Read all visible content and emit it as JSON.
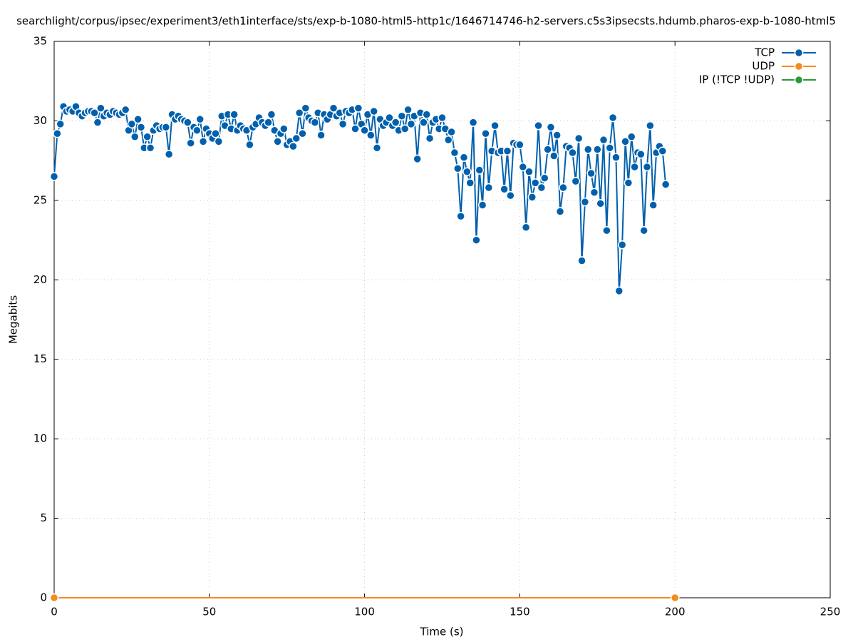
{
  "chart_data": {
    "type": "line",
    "title": "searchlight/corpus/ipsec/experiment3/eth1interface/sts/exp-b-1080-html5-http1c/1646714746-h2-servers.c5s3ipsecsts.hdumb.pharos-exp-b-1080-html5",
    "x_label": "Time (s)",
    "y_label": "Megabits",
    "xlim": [
      0,
      250
    ],
    "xticks": [
      0,
      50,
      100,
      150,
      200,
      250
    ],
    "ylim": [
      0,
      35
    ],
    "yticks": [
      0,
      5,
      10,
      15,
      20,
      25,
      30,
      35
    ],
    "grid": true,
    "legend": "top-right",
    "series": [
      {
        "name": "TCP",
        "color": "#0060ad",
        "x": [
          0,
          1,
          2,
          3,
          4,
          5,
          6,
          7,
          8,
          9,
          10,
          11,
          12,
          13,
          14,
          15,
          16,
          17,
          18,
          19,
          20,
          21,
          22,
          23,
          24,
          25,
          26,
          27,
          28,
          29,
          30,
          31,
          32,
          33,
          34,
          35,
          36,
          37,
          38,
          39,
          40,
          41,
          42,
          43,
          44,
          45,
          46,
          47,
          48,
          49,
          50,
          51,
          52,
          53,
          54,
          55,
          56,
          57,
          58,
          59,
          60,
          61,
          62,
          63,
          64,
          65,
          66,
          67,
          68,
          69,
          70,
          71,
          72,
          73,
          74,
          75,
          76,
          77,
          78,
          79,
          80,
          81,
          82,
          83,
          84,
          85,
          86,
          87,
          88,
          89,
          90,
          91,
          92,
          93,
          94,
          95,
          96,
          97,
          98,
          99,
          100,
          101,
          102,
          103,
          104,
          105,
          106,
          107,
          108,
          109,
          110,
          111,
          112,
          113,
          114,
          115,
          116,
          117,
          118,
          119,
          120,
          121,
          122,
          123,
          124,
          125,
          126,
          127,
          128,
          129,
          130,
          131,
          132,
          133,
          134,
          135,
          136,
          137,
          138,
          139,
          140,
          141,
          142,
          143,
          144,
          145,
          146,
          147,
          148,
          149,
          150,
          151,
          152,
          153,
          154,
          155,
          156,
          157,
          158,
          159,
          160,
          161,
          162,
          163,
          164,
          165,
          166,
          167,
          168,
          169,
          170,
          171,
          172,
          173,
          174,
          175,
          176,
          177,
          178,
          179,
          180,
          181,
          182,
          183,
          184,
          185,
          186,
          187,
          188,
          189,
          190,
          191,
          192,
          193,
          194,
          195,
          196,
          197
        ],
        "values": [
          26.5,
          29.2,
          29.8,
          30.9,
          30.6,
          30.7,
          30.6,
          30.9,
          30.5,
          30.3,
          30.5,
          30.6,
          30.6,
          30.5,
          29.9,
          30.8,
          30.3,
          30.5,
          30.4,
          30.6,
          30.5,
          30.4,
          30.5,
          30.7,
          29.4,
          29.8,
          29.0,
          30.1,
          29.6,
          28.3,
          29.0,
          28.3,
          29.4,
          29.7,
          29.5,
          29.6,
          29.6,
          27.9,
          30.4,
          30.1,
          30.3,
          30.1,
          30.0,
          29.9,
          28.6,
          29.6,
          29.4,
          30.1,
          28.7,
          29.5,
          29.2,
          28.9,
          29.2,
          28.7,
          30.3,
          29.7,
          30.4,
          29.5,
          30.4,
          29.4,
          29.7,
          29.5,
          29.4,
          28.5,
          29.6,
          29.8,
          30.2,
          29.9,
          29.7,
          29.9,
          30.4,
          29.4,
          28.7,
          29.2,
          29.5,
          28.5,
          28.7,
          28.4,
          28.9,
          30.5,
          29.2,
          30.8,
          30.2,
          30.0,
          29.9,
          30.5,
          29.1,
          30.4,
          30.1,
          30.4,
          30.8,
          30.3,
          30.5,
          29.8,
          30.6,
          30.5,
          30.7,
          29.5,
          30.8,
          29.8,
          29.4,
          30.4,
          29.1,
          30.6,
          28.3,
          30.1,
          29.7,
          29.9,
          30.2,
          29.7,
          29.9,
          29.4,
          30.3,
          29.5,
          30.7,
          29.8,
          30.3,
          27.6,
          30.5,
          29.9,
          30.4,
          28.9,
          29.9,
          30.1,
          29.5,
          30.2,
          29.5,
          28.8,
          29.3,
          28.0,
          27.0,
          24.0,
          27.7,
          26.8,
          26.1,
          29.9,
          22.5,
          26.9,
          24.7,
          29.2,
          25.8,
          28.1,
          29.7,
          28.0,
          28.1,
          25.7,
          28.1,
          25.3,
          28.6,
          28.5,
          28.5,
          27.1,
          23.3,
          26.8,
          25.2,
          26.1,
          29.7,
          25.8,
          26.4,
          28.2,
          29.6,
          27.8,
          29.1,
          24.3,
          25.8,
          28.4,
          28.3,
          28.0,
          26.2,
          28.9,
          21.2,
          24.9,
          28.2,
          26.7,
          25.5,
          28.2,
          24.8,
          28.8,
          23.1,
          28.3,
          30.2,
          27.7,
          19.3,
          22.2,
          28.7,
          26.1,
          29.0,
          27.1,
          28.0,
          27.9,
          23.1,
          27.1,
          29.7,
          24.7,
          28.0,
          28.4,
          28.1,
          26.0
        ]
      },
      {
        "name": "UDP",
        "color": "#f28c1e",
        "x": [
          0,
          200
        ],
        "values": [
          0,
          0
        ]
      },
      {
        "name": "IP (!TCP  !UDP)",
        "color": "#2c9a3a",
        "x": [
          0,
          200
        ],
        "values": [
          0,
          0
        ]
      }
    ]
  }
}
